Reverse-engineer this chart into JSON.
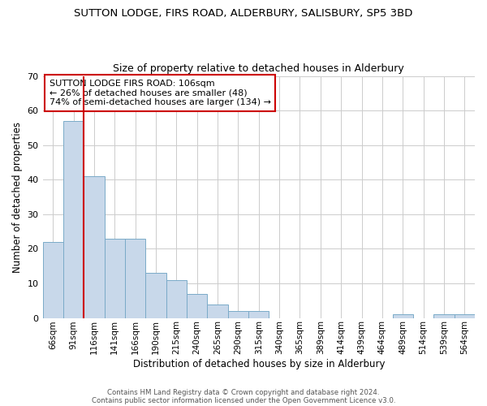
{
  "title": "SUTTON LODGE, FIRS ROAD, ALDERBURY, SALISBURY, SP5 3BD",
  "subtitle": "Size of property relative to detached houses in Alderbury",
  "xlabel": "Distribution of detached houses by size in Alderbury",
  "ylabel": "Number of detached properties",
  "bar_color": "#c8d8ea",
  "bar_edge_color": "#7aaac8",
  "grid_color": "#cccccc",
  "background_color": "#ffffff",
  "vline_color": "#cc0000",
  "annotation_text": "SUTTON LODGE FIRS ROAD: 106sqm\n← 26% of detached houses are smaller (48)\n74% of semi-detached houses are larger (134) →",
  "annotation_box_edge_color": "#cc0000",
  "categories": [
    "66sqm",
    "91sqm",
    "116sqm",
    "141sqm",
    "166sqm",
    "190sqm",
    "215sqm",
    "240sqm",
    "265sqm",
    "290sqm",
    "315sqm",
    "340sqm",
    "365sqm",
    "389sqm",
    "414sqm",
    "439sqm",
    "464sqm",
    "489sqm",
    "514sqm",
    "539sqm",
    "564sqm"
  ],
  "values": [
    22,
    57,
    41,
    23,
    23,
    13,
    11,
    7,
    4,
    2,
    2,
    0,
    0,
    0,
    0,
    0,
    0,
    1,
    0,
    1,
    1
  ],
  "vline_position": 2,
  "ylim": [
    0,
    70
  ],
  "yticks": [
    0,
    10,
    20,
    30,
    40,
    50,
    60,
    70
  ],
  "footer1": "Contains HM Land Registry data © Crown copyright and database right 2024.",
  "footer2": "Contains public sector information licensed under the Open Government Licence v3.0."
}
